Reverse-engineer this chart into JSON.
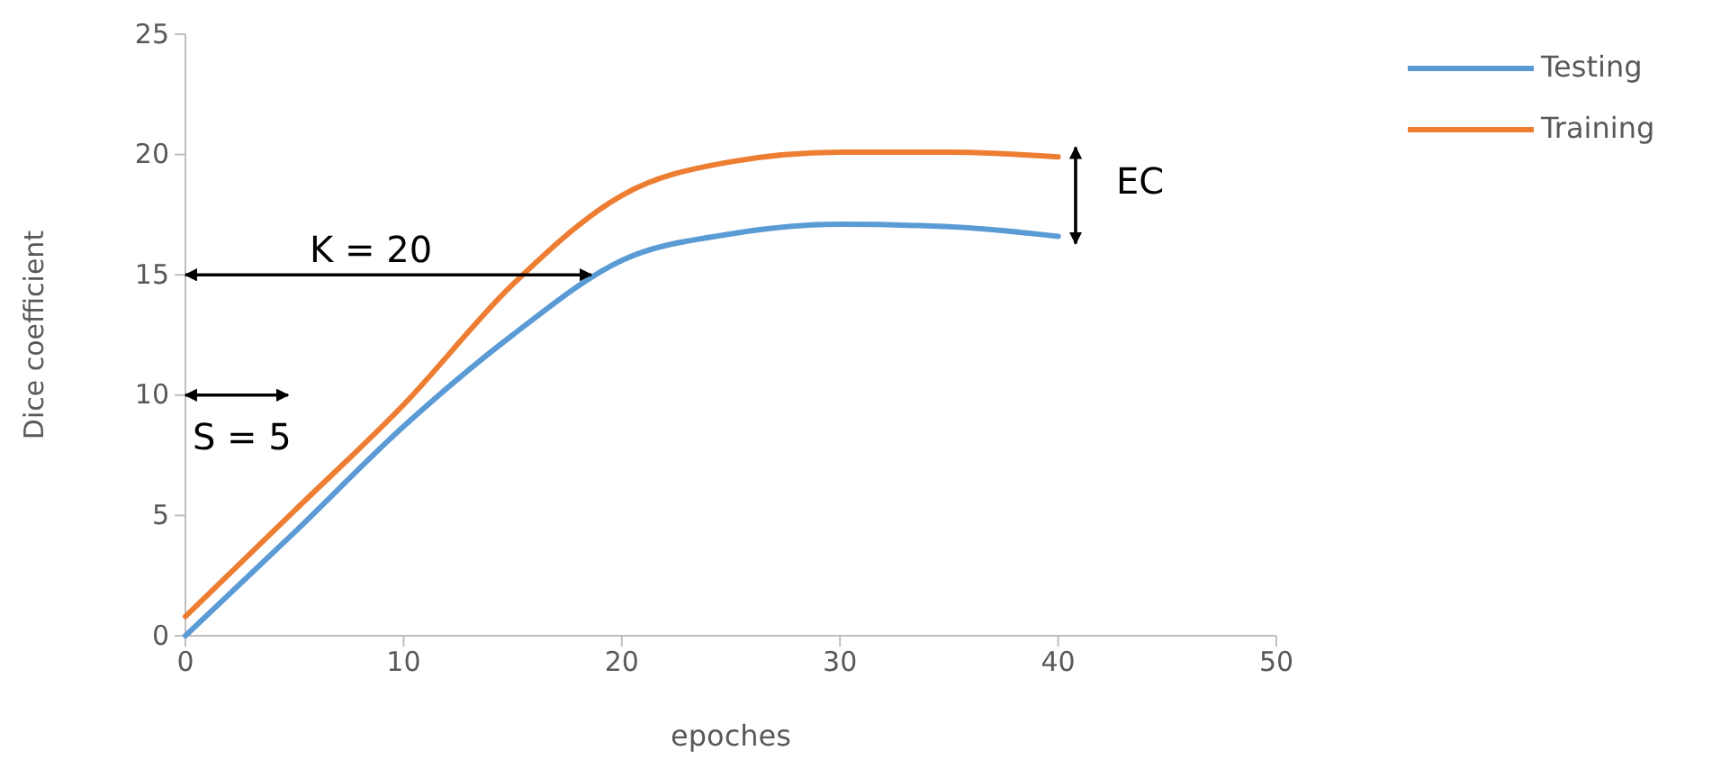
{
  "chart_data": {
    "type": "line",
    "xlabel": "epoches",
    "ylabel": "Dice coefficient",
    "xlim": [
      0,
      50
    ],
    "xticks": [
      0,
      10,
      20,
      30,
      40,
      50
    ],
    "ylim": [
      0,
      25
    ],
    "yticks": [
      0,
      5,
      10,
      15,
      20,
      25
    ],
    "grid": false,
    "legend": "top right",
    "marker": "none",
    "line_style": "solid",
    "series": [
      {
        "name": "Testing",
        "color": "#5b9bd5",
        "x": [
          0,
          5,
          10,
          15,
          20,
          25,
          30,
          35,
          40
        ],
        "values": [
          0,
          4.3,
          8.7,
          12.5,
          15.6,
          16.7,
          17.1,
          17.0,
          16.6
        ]
      },
      {
        "name": "Training",
        "color": "#ed7d31",
        "x": [
          0,
          5,
          10,
          15,
          20,
          25,
          30,
          35,
          40
        ],
        "values": [
          0.8,
          5.2,
          9.6,
          14.6,
          18.3,
          19.7,
          20.1,
          20.1,
          19.9
        ]
      }
    ],
    "annotations": [
      "K = 20",
      "S = 5",
      "EC"
    ]
  }
}
